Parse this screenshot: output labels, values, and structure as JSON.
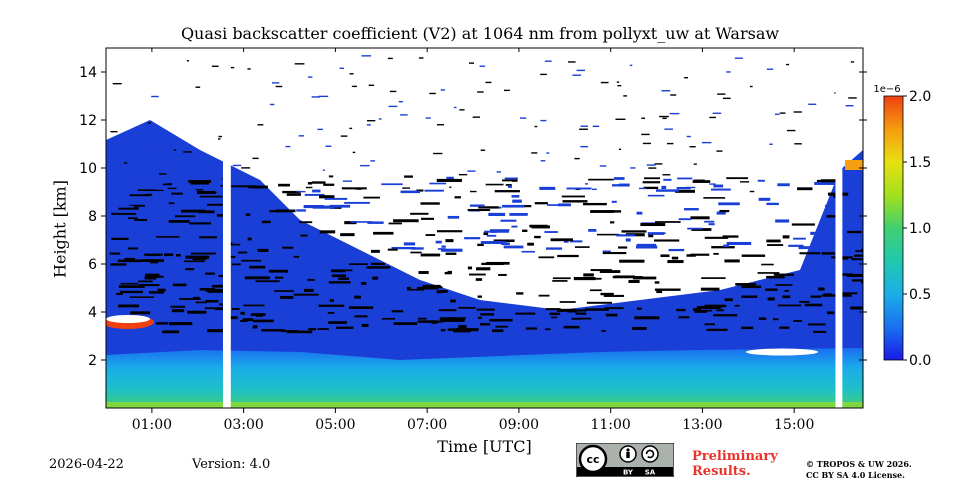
{
  "chart_data": {
    "type": "heatmap",
    "title": "Quasi backscatter coefficient (V2) at 1064 nm from pollyxt_uw at Warsaw",
    "xlabel": "Time [UTC]",
    "ylabel": "Height [km]",
    "x_tick_labels": [
      "01:00",
      "03:00",
      "05:00",
      "07:00",
      "09:00",
      "11:00",
      "13:00",
      "15:00"
    ],
    "x_tick_values_hours": [
      1,
      3,
      5,
      7,
      9,
      11,
      13,
      15
    ],
    "xlim_hours": [
      0,
      16.5
    ],
    "y_tick_labels": [
      "2",
      "4",
      "6",
      "8",
      "10",
      "12",
      "14"
    ],
    "y_tick_values": [
      2,
      4,
      6,
      8,
      10,
      12,
      14
    ],
    "ylim_km": [
      0,
      15
    ],
    "colorbar": {
      "exponent_label": "1e−6",
      "tick_labels": [
        "0.0",
        "0.5",
        "1.0",
        "1.5",
        "2.0"
      ],
      "tick_values": [
        0.0,
        0.5,
        1.0,
        1.5,
        2.0
      ],
      "range": [
        0.0,
        2.0
      ],
      "colormap": [
        "#1a1ae6",
        "#1a6ef0",
        "#1aaee8",
        "#20c8b0",
        "#40d070",
        "#a0e020",
        "#e8e010",
        "#f5a010",
        "#f04010"
      ]
    },
    "features": {
      "data_gaps_hours": [
        [
          2.55,
          2.72
        ],
        [
          15.9,
          16.05
        ]
      ],
      "no_signal_color": "#ffffff",
      "below_threshold_color": "#000000",
      "boundary_layer_top_km": 2.0,
      "aerosol_layer_top_km": [
        5.5,
        3.5,
        5.0
      ],
      "high_cloud_events": [
        {
          "start_h": 0.0,
          "end_h": 1.0,
          "height_km": 3.5,
          "value": 2.0
        },
        {
          "start_h": 14.0,
          "end_h": 15.5,
          "height_km": 2.4,
          "value": 2.0
        },
        {
          "start_h": 16.1,
          "end_h": 16.5,
          "height_km": 10.0,
          "value": 1.7
        }
      ]
    }
  },
  "footer": {
    "date": "2026-04-22",
    "version": "Version: 4.0",
    "preliminary_line1": "Preliminary",
    "preliminary_line2": "Results.",
    "copyright_line1": "© TROPOS & UW 2026.",
    "copyright_line2": "CC BY SA 4.0 License."
  },
  "license_badge": {
    "cc": "cc",
    "by": "BY",
    "sa": "SA"
  },
  "colors": {
    "low": "#1a3fd6",
    "mid": "#1aaee8",
    "high": "#f04010"
  }
}
